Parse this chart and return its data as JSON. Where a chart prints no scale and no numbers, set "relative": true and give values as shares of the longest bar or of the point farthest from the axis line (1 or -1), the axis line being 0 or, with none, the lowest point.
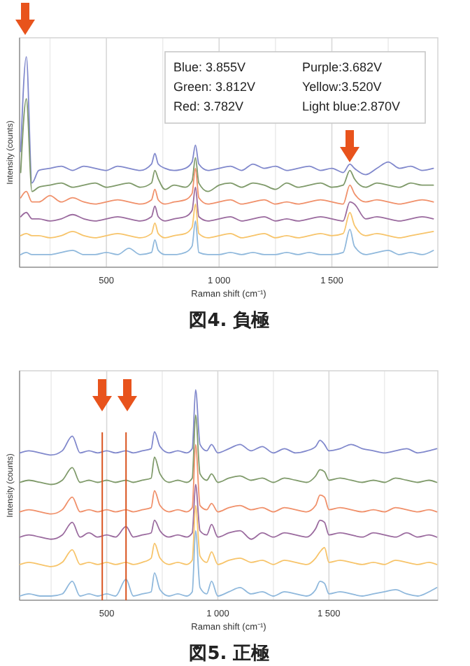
{
  "chart_data": [
    {
      "type": "line",
      "title": "図4. 負極",
      "xlabel": "Raman shift (cm⁻¹)",
      "ylabel": "Intensity (counts)",
      "relative": true,
      "tick_labels": "x",
      "grid": "x",
      "marker": "none",
      "line_style": "solid",
      "xlim": [
        115,
        1970
      ],
      "xticks": [
        {
          "value": 250,
          "label": null
        },
        500,
        {
          "value": 750,
          "label": null
        },
        {
          "value": 1000,
          "label": "1 000"
        },
        {
          "value": 1250,
          "label": null
        },
        {
          "value": 1500,
          "label": "1 500"
        },
        {
          "value": 1750,
          "label": null
        }
      ],
      "annotations": [
        "Blue:  3.855V",
        "Green: 3.812V",
        "Red:  3.782V",
        "Purple:3.682V",
        "Yellow:3.520V",
        "Light blue:2.870V"
      ],
      "x": [
        120,
        145,
        170,
        200,
        250,
        300,
        350,
        400,
        450,
        500,
        550,
        600,
        650,
        700,
        715,
        730,
        760,
        800,
        850,
        880,
        895,
        910,
        950,
        1000,
        1050,
        1100,
        1150,
        1200,
        1250,
        1300,
        1350,
        1400,
        1450,
        1500,
        1550,
        1580,
        1600,
        1650,
        1700,
        1750,
        1800,
        1850,
        1900,
        1950
      ],
      "series": [
        {
          "color": "#8088cc",
          "values": [
            0.55,
            1.0,
            0.4,
            0.46,
            0.47,
            0.48,
            0.46,
            0.48,
            0.47,
            0.46,
            0.48,
            0.47,
            0.46,
            0.49,
            0.54,
            0.49,
            0.47,
            0.46,
            0.47,
            0.5,
            0.58,
            0.49,
            0.46,
            0.47,
            0.48,
            0.46,
            0.49,
            0.47,
            0.48,
            0.46,
            0.47,
            0.48,
            0.46,
            0.47,
            0.45,
            0.49,
            0.47,
            0.44,
            0.47,
            0.5,
            0.47,
            0.48,
            0.46,
            0.47
          ]
        },
        {
          "color": "#7f9a6a",
          "values": [
            0.45,
            0.8,
            0.36,
            0.38,
            0.39,
            0.4,
            0.38,
            0.39,
            0.4,
            0.38,
            0.39,
            0.4,
            0.38,
            0.4,
            0.46,
            0.42,
            0.37,
            0.39,
            0.38,
            0.41,
            0.52,
            0.4,
            0.36,
            0.39,
            0.4,
            0.38,
            0.4,
            0.39,
            0.37,
            0.4,
            0.38,
            0.39,
            0.4,
            0.38,
            0.39,
            0.46,
            0.42,
            0.38,
            0.4,
            0.39,
            0.38,
            0.4,
            0.39,
            0.39
          ]
        },
        {
          "color": "#f0906a",
          "values": [
            0.33,
            0.36,
            0.31,
            0.31,
            0.34,
            0.31,
            0.33,
            0.31,
            0.3,
            0.31,
            0.32,
            0.31,
            0.3,
            0.32,
            0.37,
            0.32,
            0.3,
            0.31,
            0.32,
            0.35,
            0.47,
            0.33,
            0.3,
            0.31,
            0.32,
            0.3,
            0.31,
            0.32,
            0.3,
            0.31,
            0.3,
            0.31,
            0.32,
            0.31,
            0.3,
            0.39,
            0.35,
            0.31,
            0.32,
            0.31,
            0.3,
            0.31,
            0.32,
            0.31
          ]
        },
        {
          "color": "#9a6a9e",
          "values": [
            0.24,
            0.26,
            0.23,
            0.23,
            0.22,
            0.23,
            0.25,
            0.23,
            0.22,
            0.23,
            0.24,
            0.23,
            0.22,
            0.24,
            0.29,
            0.24,
            0.22,
            0.23,
            0.24,
            0.27,
            0.38,
            0.24,
            0.22,
            0.23,
            0.24,
            0.22,
            0.23,
            0.24,
            0.22,
            0.23,
            0.22,
            0.23,
            0.24,
            0.23,
            0.22,
            0.31,
            0.3,
            0.23,
            0.24,
            0.23,
            0.22,
            0.23,
            0.24,
            0.23
          ]
        },
        {
          "color": "#f7c46a",
          "values": [
            0.15,
            0.16,
            0.15,
            0.15,
            0.14,
            0.15,
            0.17,
            0.15,
            0.14,
            0.15,
            0.16,
            0.15,
            0.14,
            0.16,
            0.21,
            0.16,
            0.14,
            0.15,
            0.16,
            0.19,
            0.3,
            0.16,
            0.14,
            0.15,
            0.16,
            0.14,
            0.15,
            0.16,
            0.14,
            0.15,
            0.14,
            0.15,
            0.16,
            0.15,
            0.16,
            0.26,
            0.2,
            0.15,
            0.16,
            0.15,
            0.14,
            0.15,
            0.16,
            0.17
          ]
        },
        {
          "color": "#8fb8dc",
          "values": [
            0.06,
            0.07,
            0.06,
            0.06,
            0.06,
            0.07,
            0.08,
            0.06,
            0.06,
            0.07,
            0.06,
            0.09,
            0.06,
            0.07,
            0.13,
            0.08,
            0.06,
            0.06,
            0.07,
            0.1,
            0.22,
            0.07,
            0.06,
            0.06,
            0.07,
            0.06,
            0.07,
            0.06,
            0.06,
            0.07,
            0.06,
            0.07,
            0.06,
            0.06,
            0.07,
            0.18,
            0.1,
            0.06,
            0.07,
            0.08,
            0.06,
            0.07,
            0.06,
            0.08
          ]
        }
      ]
    },
    {
      "type": "line",
      "title": "図5. 正極",
      "xlabel": "Raman shift (cm⁻¹)",
      "ylabel": "Intensity (counts)",
      "relative": true,
      "tick_labels": "x",
      "grid": "x",
      "marker": "none",
      "line_style": "solid",
      "xlim": [
        108,
        1990
      ],
      "xticks": [
        {
          "value": 250,
          "label": null
        },
        500,
        {
          "value": 750,
          "label": null
        },
        {
          "value": 1000,
          "label": "1 000"
        },
        {
          "value": 1250,
          "label": null
        },
        {
          "value": 1500,
          "label": "1 500"
        },
        {
          "value": 1750,
          "label": null
        }
      ],
      "ref_lines": [
        {
          "axis": "x",
          "value": 480,
          "color": "#d9531e"
        },
        {
          "axis": "x",
          "value": 587,
          "color": "#d9531e"
        }
      ],
      "x": [
        110,
        150,
        200,
        250,
        300,
        345,
        380,
        420,
        460,
        500,
        540,
        587,
        620,
        660,
        700,
        715,
        740,
        780,
        820,
        860,
        885,
        900,
        920,
        950,
        972,
        1000,
        1050,
        1100,
        1150,
        1200,
        1250,
        1300,
        1350,
        1400,
        1440,
        1460,
        1480,
        1500,
        1550,
        1600,
        1650,
        1700,
        1750,
        1800,
        1850,
        1900,
        1950,
        1985
      ],
      "series": [
        {
          "color": "#8088cc",
          "values": [
            0.7,
            0.71,
            0.7,
            0.69,
            0.71,
            0.78,
            0.7,
            0.71,
            0.7,
            0.71,
            0.7,
            0.71,
            0.7,
            0.71,
            0.72,
            0.8,
            0.73,
            0.7,
            0.71,
            0.7,
            0.72,
            1.0,
            0.74,
            0.71,
            0.74,
            0.7,
            0.72,
            0.74,
            0.71,
            0.73,
            0.7,
            0.72,
            0.7,
            0.71,
            0.73,
            0.76,
            0.74,
            0.71,
            0.72,
            0.74,
            0.72,
            0.71,
            0.7,
            0.71,
            0.72,
            0.7,
            0.71,
            0.72
          ]
        },
        {
          "color": "#7f9a6a",
          "values": [
            0.56,
            0.57,
            0.56,
            0.55,
            0.57,
            0.63,
            0.56,
            0.57,
            0.56,
            0.57,
            0.56,
            0.57,
            0.56,
            0.57,
            0.58,
            0.68,
            0.6,
            0.56,
            0.57,
            0.56,
            0.58,
            0.88,
            0.6,
            0.57,
            0.6,
            0.56,
            0.58,
            0.59,
            0.57,
            0.58,
            0.56,
            0.58,
            0.57,
            0.56,
            0.59,
            0.62,
            0.61,
            0.57,
            0.58,
            0.57,
            0.56,
            0.57,
            0.56,
            0.58,
            0.57,
            0.56,
            0.57,
            0.56
          ]
        },
        {
          "color": "#f0906a",
          "values": [
            0.42,
            0.43,
            0.42,
            0.41,
            0.43,
            0.49,
            0.42,
            0.43,
            0.42,
            0.43,
            0.42,
            0.43,
            0.42,
            0.43,
            0.44,
            0.52,
            0.45,
            0.42,
            0.43,
            0.42,
            0.44,
            0.74,
            0.45,
            0.43,
            0.46,
            0.42,
            0.44,
            0.45,
            0.43,
            0.44,
            0.42,
            0.44,
            0.43,
            0.42,
            0.45,
            0.5,
            0.49,
            0.43,
            0.44,
            0.43,
            0.42,
            0.43,
            0.42,
            0.44,
            0.43,
            0.42,
            0.43,
            0.42
          ]
        },
        {
          "color": "#9a6a9e",
          "values": [
            0.3,
            0.31,
            0.3,
            0.29,
            0.31,
            0.37,
            0.3,
            0.32,
            0.3,
            0.31,
            0.3,
            0.35,
            0.3,
            0.31,
            0.32,
            0.38,
            0.33,
            0.3,
            0.31,
            0.3,
            0.32,
            0.55,
            0.33,
            0.31,
            0.36,
            0.3,
            0.32,
            0.33,
            0.29,
            0.32,
            0.3,
            0.32,
            0.31,
            0.3,
            0.34,
            0.38,
            0.37,
            0.31,
            0.32,
            0.31,
            0.3,
            0.32,
            0.31,
            0.3,
            0.32,
            0.3,
            0.31,
            0.3
          ]
        },
        {
          "color": "#f7c46a",
          "values": [
            0.17,
            0.18,
            0.17,
            0.16,
            0.18,
            0.24,
            0.17,
            0.18,
            0.17,
            0.18,
            0.17,
            0.18,
            0.17,
            0.18,
            0.2,
            0.27,
            0.2,
            0.17,
            0.18,
            0.17,
            0.19,
            0.45,
            0.21,
            0.18,
            0.23,
            0.17,
            0.19,
            0.2,
            0.18,
            0.19,
            0.17,
            0.19,
            0.18,
            0.17,
            0.2,
            0.23,
            0.25,
            0.18,
            0.19,
            0.18,
            0.17,
            0.18,
            0.17,
            0.19,
            0.18,
            0.17,
            0.18,
            0.17
          ]
        },
        {
          "color": "#8fb8dc",
          "values": [
            0.02,
            0.03,
            0.02,
            0.02,
            0.03,
            0.09,
            0.02,
            0.03,
            0.02,
            0.03,
            0.02,
            0.1,
            0.02,
            0.03,
            0.04,
            0.13,
            0.05,
            0.02,
            0.03,
            0.02,
            0.04,
            0.33,
            0.06,
            0.03,
            0.09,
            0.02,
            0.04,
            0.06,
            0.03,
            0.04,
            0.02,
            0.04,
            0.03,
            0.02,
            0.05,
            0.09,
            0.08,
            0.03,
            0.04,
            0.03,
            0.02,
            0.03,
            0.04,
            0.05,
            0.03,
            0.02,
            0.04,
            0.06
          ]
        }
      ]
    }
  ]
}
